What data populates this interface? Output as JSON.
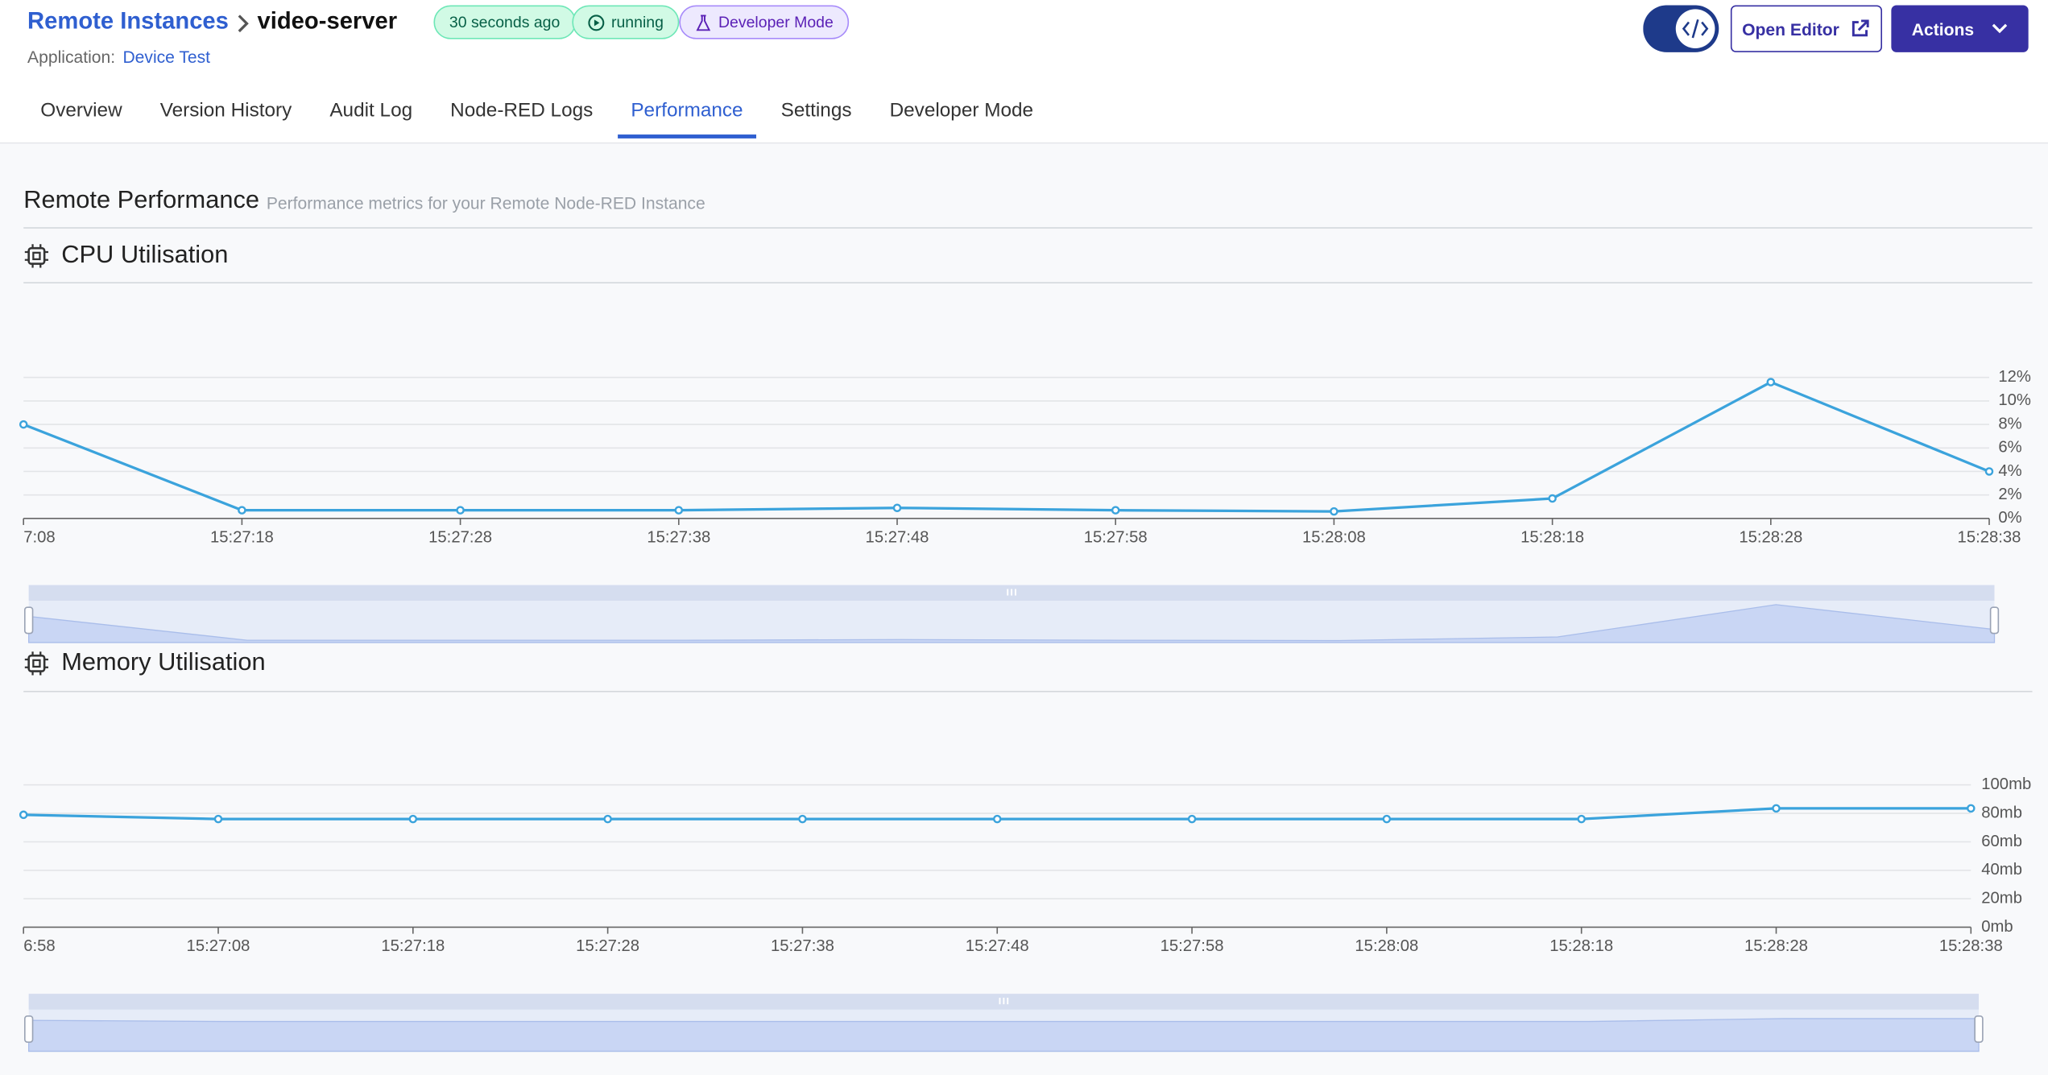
{
  "header": {
    "breadcrumb": "Remote Instances",
    "title": "video-server",
    "badges": [
      "30 seconds ago",
      "running",
      "Developer Mode"
    ],
    "application_label": "Application:",
    "application": "Device Test",
    "buttons": [
      "Open Editor",
      "Actions"
    ]
  },
  "tabs": {
    "items": [
      "Overview",
      "Version History",
      "Audit Log",
      "Node-RED Logs",
      "Performance",
      "Settings",
      "Developer Mode"
    ],
    "active": 4
  },
  "section": {
    "title": "Remote Performance",
    "subtitle": "Performance metrics for your Remote Node-RED Instance"
  },
  "chart_data": [
    {
      "type": "line",
      "title": "CPU Utilisation",
      "color": "#3ba3dc",
      "grid": true,
      "categories": [
        "7:08",
        "15:27:18",
        "15:27:28",
        "15:27:38",
        "15:27:48",
        "15:27:58",
        "15:28:08",
        "15:28:18",
        "15:28:28",
        "15:28:38"
      ],
      "values": [
        8.0,
        0.7,
        0.7,
        0.7,
        0.9,
        0.7,
        0.6,
        1.7,
        11.6,
        4.0
      ],
      "ylim": [
        0,
        12
      ],
      "yticks": [
        {
          "value": 0,
          "label": "0%"
        },
        {
          "value": 2,
          "label": "2%"
        },
        {
          "value": 4,
          "label": "4%"
        },
        {
          "value": 6,
          "label": "6%"
        },
        {
          "value": 8,
          "label": "8%"
        },
        {
          "value": 10,
          "label": "10%"
        },
        {
          "value": 12,
          "label": "12%"
        }
      ]
    },
    {
      "type": "line",
      "title": "Memory Utilisation",
      "color": "#3ba3dc",
      "grid": true,
      "categories": [
        "6:58",
        "15:27:08",
        "15:27:18",
        "15:27:28",
        "15:27:38",
        "15:27:48",
        "15:27:58",
        "15:28:08",
        "15:28:18",
        "15:28:28",
        "15:28:38"
      ],
      "values": [
        79,
        76,
        76,
        76,
        76,
        76,
        76,
        76,
        76,
        83.5,
        83.5
      ],
      "ylim": [
        0,
        100
      ],
      "yticks": [
        {
          "value": 0,
          "label": "0mb"
        },
        {
          "value": 20,
          "label": "20mb"
        },
        {
          "value": 40,
          "label": "40mb"
        },
        {
          "value": 60,
          "label": "60mb"
        },
        {
          "value": 80,
          "label": "80mb"
        },
        {
          "value": 100,
          "label": "100mb"
        }
      ]
    }
  ]
}
